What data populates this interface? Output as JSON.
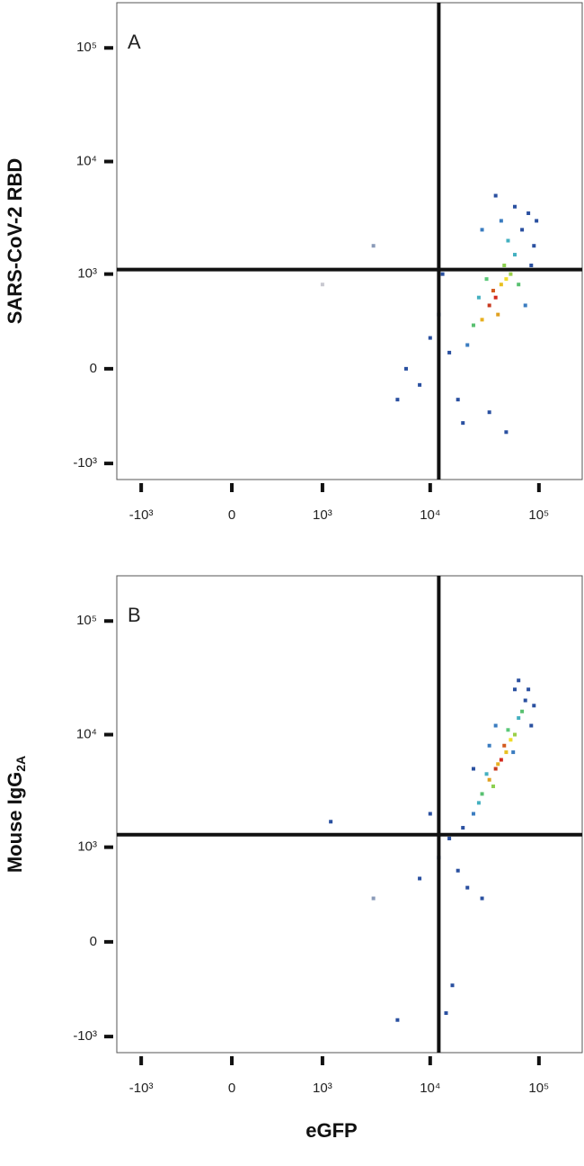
{
  "chart_data": [
    {
      "type": "scatter",
      "panel_label": "A",
      "y_label": "SARS-CoV-2 RBD",
      "xscale": "biexponential",
      "yscale": "biexponential",
      "xlim": [
        -1700,
        250000
      ],
      "ylim": [
        -1400,
        250000
      ],
      "xticks": [
        {
          "value": -1000,
          "label": "-10³"
        },
        0,
        {
          "value": 1000,
          "label": "10³"
        },
        {
          "value": 10000,
          "label": "10⁴"
        },
        {
          "value": 100000,
          "label": "10⁵"
        }
      ],
      "yticks": [
        {
          "value": -1000,
          "label": "-10³"
        },
        0,
        {
          "value": 1000,
          "label": "10³"
        },
        {
          "value": 10000,
          "label": "10⁴"
        },
        {
          "value": 100000,
          "label": "10⁵"
        }
      ],
      "gate_x": 12000,
      "gate_y": 1100,
      "x": [
        40000,
        45000,
        35000,
        50000,
        42000,
        38000,
        55000,
        30000,
        25000,
        60000,
        48000,
        33000,
        28000,
        65000,
        52000,
        22000,
        15000,
        18000,
        12000,
        70000,
        80000,
        60000,
        45000,
        90000,
        20000,
        10000,
        8000,
        35000,
        50000,
        75000,
        85000,
        13000,
        40000,
        30000,
        95000,
        6000,
        5000,
        3000,
        1000
      ],
      "y": [
        600,
        800,
        500,
        900,
        400,
        700,
        1000,
        350,
        300,
        1500,
        1200,
        900,
        600,
        800,
        2000,
        150,
        100,
        -200,
        400,
        2500,
        3500,
        4000,
        3000,
        1800,
        -400,
        200,
        -100,
        -300,
        -500,
        500,
        1200,
        1000,
        5000,
        2500,
        3000,
        0,
        -200,
        1800,
        800
      ],
      "colors": [
        "#d42a1e",
        "#e8c020",
        "#c83a20",
        "#f0dc28",
        "#e0a020",
        "#d45a1e",
        "#9ad048",
        "#e8b020",
        "#58c070",
        "#44b0c0",
        "#8cd050",
        "#5ac878",
        "#44b0c0",
        "#58c070",
        "#44b0c0",
        "#3a7cc0",
        "#2a50a0",
        "#2a50a0",
        "#2a50a0",
        "#2a50a0",
        "#2a50a0",
        "#2a50a0",
        "#3a7cc0",
        "#2a50a0",
        "#2a50a0",
        "#2a50a0",
        "#2a50a0",
        "#2a50a0",
        "#2a50a0",
        "#3a7cc0",
        "#2a50a0",
        "#2a50a0",
        "#2a50a0",
        "#3a7cc0",
        "#2a50a0",
        "#2a50a0",
        "#2a50a0",
        "#8a9ab8",
        "#c8c8d0"
      ]
    },
    {
      "type": "scatter",
      "panel_label": "B",
      "y_label": "Mouse IgG",
      "y_label_sub": "2A",
      "x_label": "eGFP",
      "xscale": "biexponential",
      "yscale": "biexponential",
      "xlim": [
        -1700,
        250000
      ],
      "ylim": [
        -1400,
        250000
      ],
      "xticks": [
        {
          "value": -1000,
          "label": "-10³"
        },
        0,
        {
          "value": 1000,
          "label": "10³"
        },
        {
          "value": 10000,
          "label": "10⁴"
        },
        {
          "value": 100000,
          "label": "10⁵"
        }
      ],
      "yticks": [
        {
          "value": -1000,
          "label": "-10³"
        },
        0,
        {
          "value": 1000,
          "label": "10³"
        },
        {
          "value": 10000,
          "label": "10⁴"
        },
        {
          "value": 100000,
          "label": "10⁵"
        }
      ],
      "gate_x": 12000,
      "gate_y": 1300,
      "x": [
        45000,
        50000,
        40000,
        55000,
        35000,
        48000,
        60000,
        42000,
        30000,
        65000,
        38000,
        52000,
        28000,
        70000,
        33000,
        58000,
        20000,
        15000,
        12000,
        18000,
        25000,
        80000,
        75000,
        90000,
        85000,
        22000,
        30000,
        16000,
        10000,
        8000,
        14000,
        40000,
        60000,
        65000,
        35000,
        25000,
        1200,
        5000,
        3000
      ],
      "y": [
        6000,
        7000,
        5000,
        9000,
        4000,
        8000,
        10000,
        5500,
        3000,
        14000,
        3500,
        11000,
        2500,
        16000,
        4500,
        7000,
        1500,
        1200,
        800,
        600,
        2000,
        25000,
        20000,
        18000,
        12000,
        400,
        300,
        -300,
        2000,
        500,
        -600,
        12000,
        25000,
        30000,
        8000,
        5000,
        1700,
        -700,
        300
      ],
      "colors": [
        "#d42a1e",
        "#e8c020",
        "#c83a20",
        "#f0dc28",
        "#e0a020",
        "#d45a1e",
        "#9ad048",
        "#e8b020",
        "#58c070",
        "#44b0c0",
        "#8cd050",
        "#5ac878",
        "#44b0c0",
        "#58c070",
        "#44b0c0",
        "#3a7cc0",
        "#2a50a0",
        "#2a50a0",
        "#2a50a0",
        "#2a50a0",
        "#3a7cc0",
        "#2a50a0",
        "#2a50a0",
        "#2a50a0",
        "#2a50a0",
        "#2a50a0",
        "#2a50a0",
        "#2a50a0",
        "#2a50a0",
        "#2a50a0",
        "#2a50a0",
        "#3a7cc0",
        "#2a50a0",
        "#2a50a0",
        "#3a7cc0",
        "#2a50a0",
        "#2a50a0",
        "#2a50a0",
        "#8a9ab8"
      ]
    }
  ]
}
